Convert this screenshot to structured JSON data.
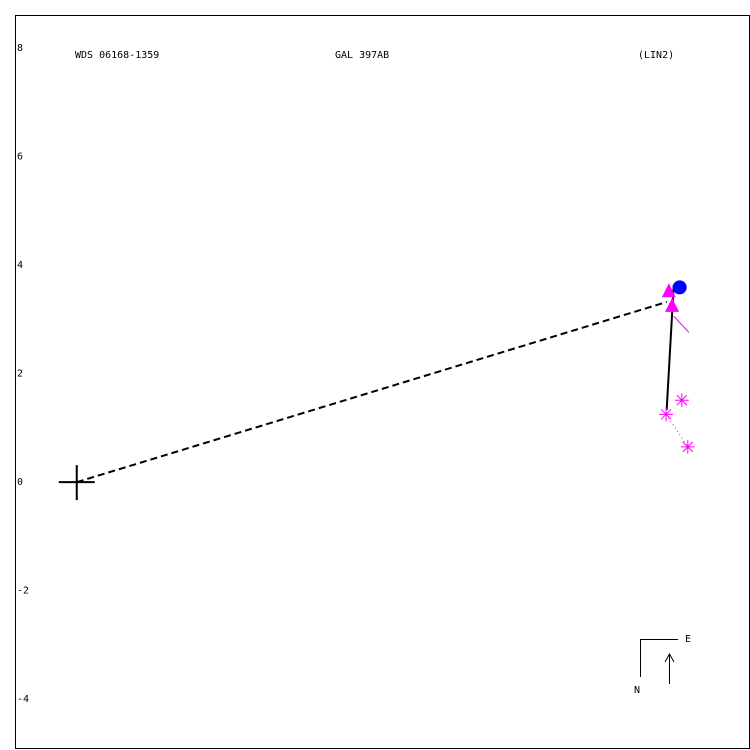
{
  "chart_data": {
    "type": "scatter",
    "title": "WDS 06168-1359",
    "subtitle": "GAL 397AB",
    "annotation": "(LIN2)",
    "compass": {
      "east": "E",
      "north": "N"
    },
    "xlim": [
      -1.14,
      12.41
    ],
    "ylim": [
      -4.9,
      8.61
    ],
    "yticks": [
      8,
      6,
      4,
      2,
      0,
      -2,
      -4
    ],
    "series": [
      {
        "marker": "plus",
        "color": "#000000",
        "x": [
          0
        ],
        "values": [
          0
        ]
      },
      {
        "line": "dashed",
        "color": "#000000",
        "x": [
          0,
          10.89
        ],
        "values": [
          0,
          3.32
        ]
      },
      {
        "line": "solid",
        "color": "#000000",
        "x": [
          11.02,
          10.89
        ],
        "values": [
          3.63,
          1.33
        ]
      },
      {
        "line": "solid",
        "color": "#ff00ff",
        "x": [
          11.02,
          11.3
        ],
        "values": [
          3.06,
          2.76
        ]
      },
      {
        "line": "dotted",
        "color": "#ff00ff",
        "x": [
          10.88,
          11.28
        ],
        "values": [
          1.25,
          0.65
        ]
      },
      {
        "marker": "dot",
        "color": "#0000ff",
        "x": [
          11.13
        ],
        "values": [
          3.59
        ]
      },
      {
        "marker": "triangle",
        "color": "#ff00ff",
        "x": [
          10.93,
          10.99
        ],
        "values": [
          3.5,
          3.23
        ]
      },
      {
        "marker": "asterisk",
        "color": "#ff00ff",
        "x": [
          10.88,
          11.17,
          11.28
        ],
        "values": [
          1.25,
          1.51,
          0.65
        ]
      }
    ]
  }
}
